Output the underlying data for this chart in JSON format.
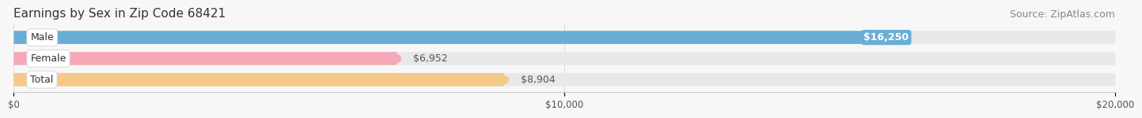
{
  "title": "Earnings by Sex in Zip Code 68421",
  "source": "Source: ZipAtlas.com",
  "categories": [
    "Male",
    "Female",
    "Total"
  ],
  "values": [
    16250,
    6952,
    8904
  ],
  "bar_colors": [
    "#6AAED6",
    "#F4A8B8",
    "#F5C98A"
  ],
  "xlim": [
    0,
    20000
  ],
  "xtick_labels": [
    "$0",
    "$10,000",
    "$20,000"
  ],
  "bar_height": 0.62,
  "background_color": "#f7f7f7",
  "bar_bg_color": "#e8e8e8",
  "title_fontsize": 11,
  "source_fontsize": 9,
  "value_fontsize": 9,
  "category_fontsize": 9,
  "male_value_label_color": "#ffffff",
  "other_value_label_color": "#555555"
}
